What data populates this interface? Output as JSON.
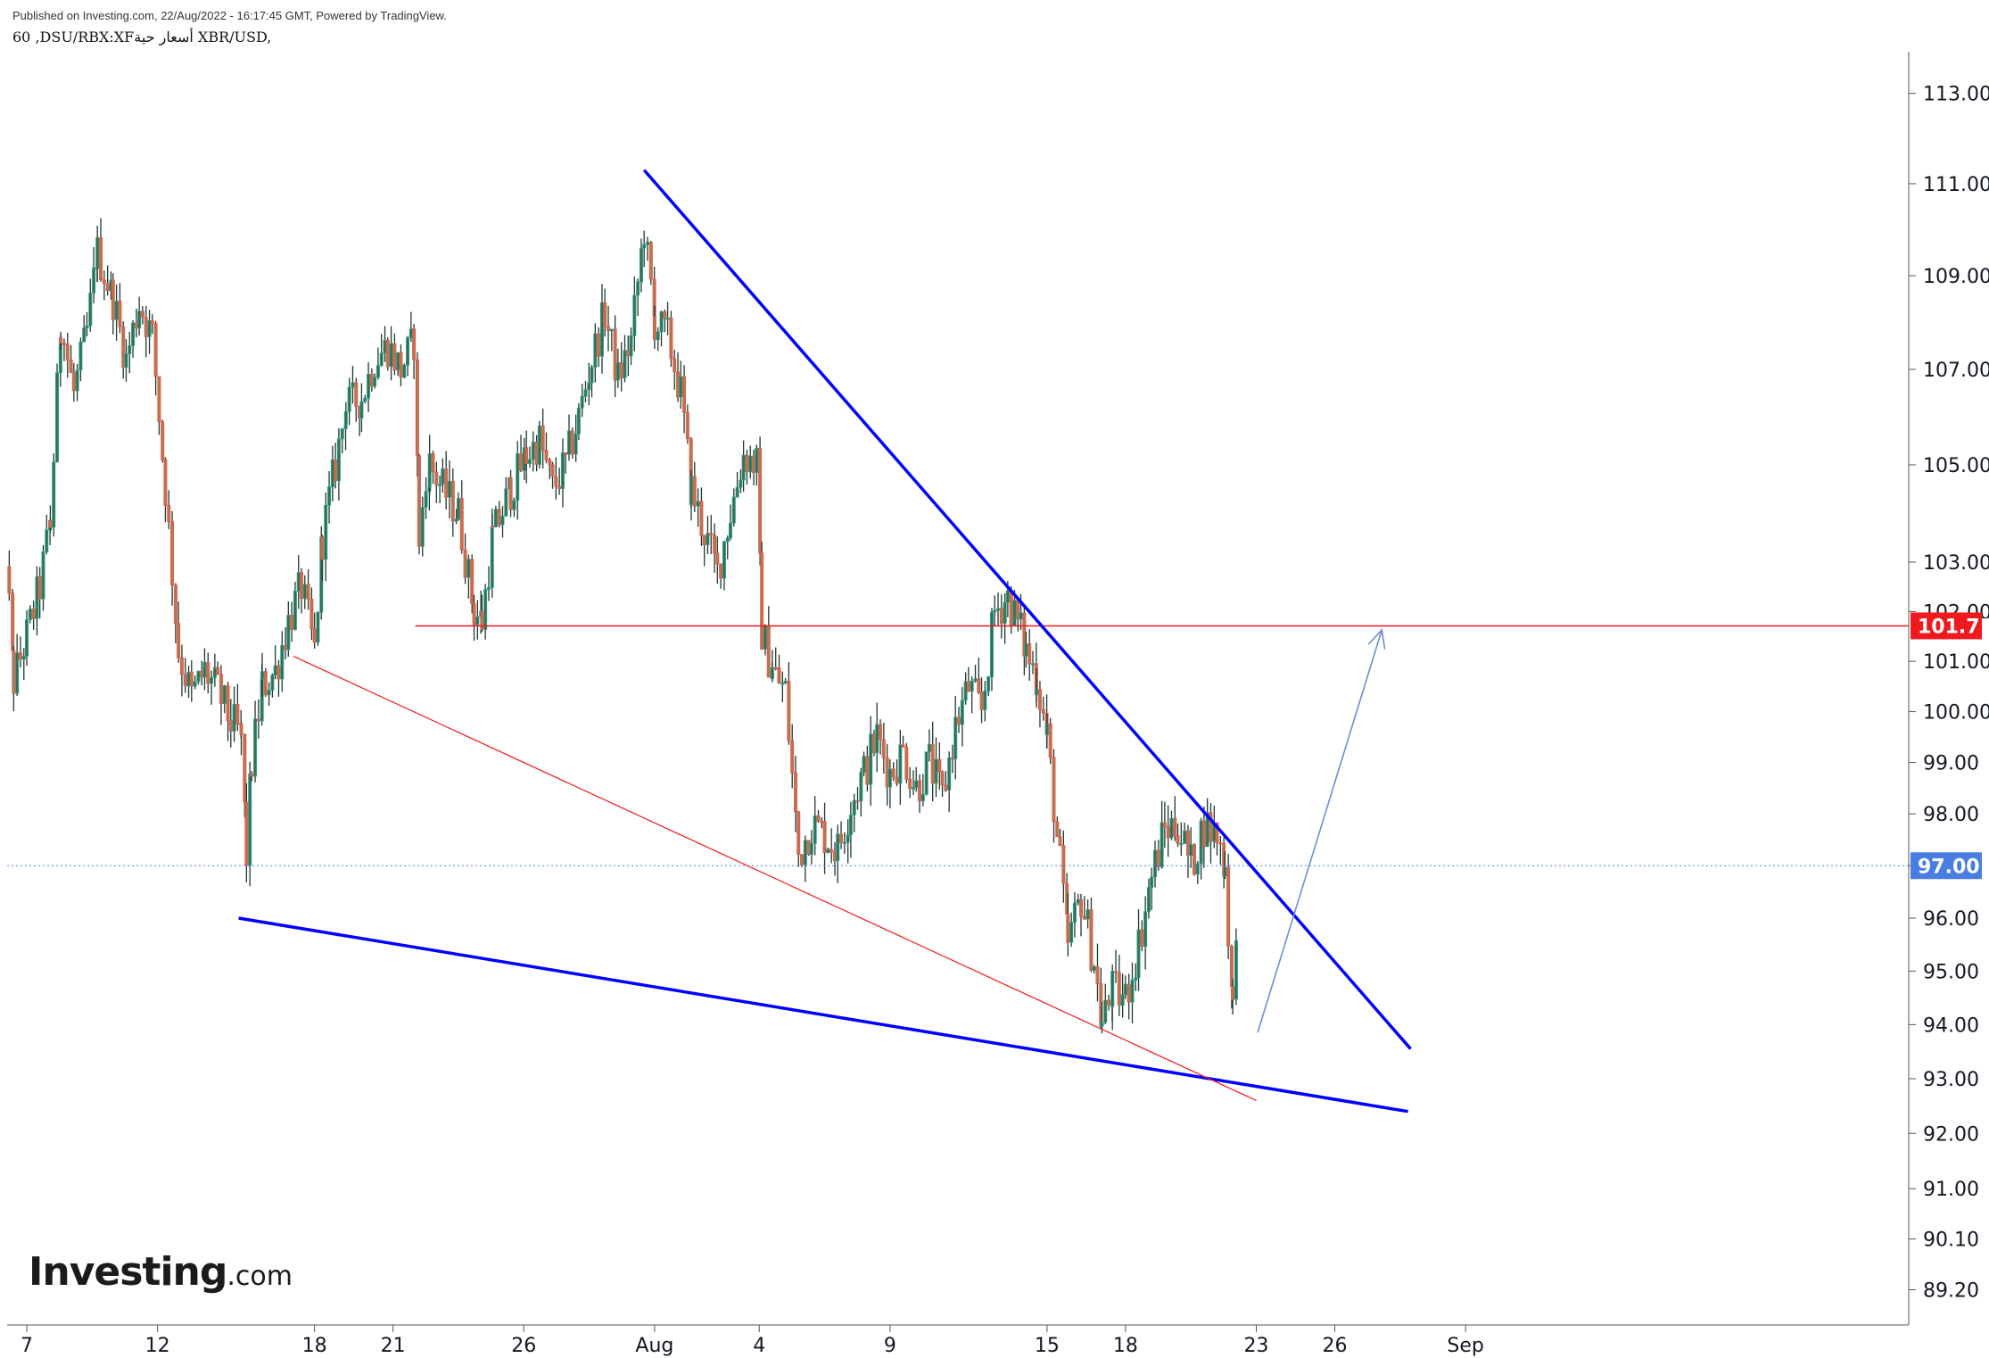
{
  "header": {
    "published": "Published on Investing.com, 22/Aug/2022 - 16:17:45 GMT, Powered by TradingView.",
    "symbol": "60 ,DSU/RBX:XFأسعار حية XBR/USD,"
  },
  "logo": {
    "main": "Investing",
    "domain": ".com"
  },
  "chart_data": {
    "type": "candlestick",
    "x_ticks": [
      {
        "label": "7",
        "day": 7
      },
      {
        "label": "12",
        "day": 12
      },
      {
        "label": "18",
        "day": 18
      },
      {
        "label": "21",
        "day": 21
      },
      {
        "label": "26",
        "day": 26
      },
      {
        "label": "Aug",
        "day": 31
      },
      {
        "label": "4",
        "day": 35
      },
      {
        "label": "9",
        "day": 40
      },
      {
        "label": "15",
        "day": 46
      },
      {
        "label": "18",
        "day": 49
      },
      {
        "label": "23",
        "day": 54
      },
      {
        "label": "26",
        "day": 57
      },
      {
        "label": "Sep",
        "day": 62
      }
    ],
    "y_ticks": [
      "113.00",
      "111.00",
      "109.00",
      "107.00",
      "105.00",
      "103.00",
      "102.00",
      "101.00",
      "100.00",
      "99.00",
      "98.00",
      "97.00",
      "96.00",
      "95.00",
      "94.00",
      "93.00",
      "92.00",
      "91.00",
      "90.10",
      "89.20"
    ],
    "y_scale": "log",
    "price_labels": [
      {
        "value": "101.71",
        "color": "#f0191e",
        "text_color": "#ffffff"
      },
      {
        "value": "97.00",
        "color": "#4a7de2",
        "text_color": "#ffffff"
      }
    ],
    "up_color": "#26a69a",
    "down_color": "#ef5350",
    "path": [
      [
        6.0,
        106.5
      ],
      [
        6.2,
        103.2
      ],
      [
        6.5,
        100.6
      ],
      [
        7.0,
        101.5
      ],
      [
        7.5,
        102.5
      ],
      [
        7.9,
        103.8
      ],
      [
        8.3,
        108.0
      ],
      [
        8.8,
        106.5
      ],
      [
        9.3,
        107.8
      ],
      [
        9.7,
        109.5
      ],
      [
        10.3,
        108.5
      ],
      [
        10.8,
        107.2
      ],
      [
        11.3,
        108.4
      ],
      [
        11.8,
        107.7
      ],
      [
        12.3,
        104.5
      ],
      [
        12.8,
        101.2
      ],
      [
        13.3,
        100.3
      ],
      [
        13.8,
        100.8
      ],
      [
        14.3,
        100.4
      ],
      [
        14.8,
        99.8
      ],
      [
        15.2,
        99.5
      ],
      [
        15.4,
        97.2
      ],
      [
        15.6,
        99.0
      ],
      [
        16.0,
        100.5
      ],
      [
        16.5,
        100.8
      ],
      [
        17.0,
        101.8
      ],
      [
        17.5,
        102.5
      ],
      [
        18.0,
        101.2
      ],
      [
        18.3,
        103.5
      ],
      [
        18.8,
        105.0
      ],
      [
        19.2,
        106.2
      ],
      [
        19.8,
        106.4
      ],
      [
        20.3,
        107.2
      ],
      [
        20.8,
        107.5
      ],
      [
        21.3,
        107.0
      ],
      [
        21.8,
        107.6
      ],
      [
        22.0,
        103.5
      ],
      [
        22.4,
        105.0
      ],
      [
        22.9,
        104.5
      ],
      [
        23.5,
        104.0
      ],
      [
        24.1,
        102.0
      ],
      [
        24.4,
        101.8
      ],
      [
        24.8,
        103.5
      ],
      [
        25.5,
        104.5
      ],
      [
        26.1,
        105.2
      ],
      [
        26.6,
        105.5
      ],
      [
        27.1,
        104.5
      ],
      [
        27.6,
        105.0
      ],
      [
        28.1,
        106.0
      ],
      [
        28.6,
        107.2
      ],
      [
        29.1,
        108.2
      ],
      [
        29.6,
        106.8
      ],
      [
        30.1,
        107.6
      ],
      [
        30.6,
        110.0
      ],
      [
        31.0,
        108.0
      ],
      [
        31.5,
        107.7
      ],
      [
        32.0,
        106.5
      ],
      [
        32.4,
        104.5
      ],
      [
        32.9,
        103.6
      ],
      [
        33.4,
        102.8
      ],
      [
        33.9,
        104.0
      ],
      [
        34.4,
        105.2
      ],
      [
        34.9,
        105.0
      ],
      [
        35.1,
        101.6
      ],
      [
        35.5,
        100.8
      ],
      [
        36.0,
        100.4
      ],
      [
        36.5,
        97.2
      ],
      [
        37.0,
        97.8
      ],
      [
        37.5,
        97.6
      ],
      [
        38.0,
        97.3
      ],
      [
        38.5,
        98.2
      ],
      [
        39.0,
        98.8
      ],
      [
        39.5,
        99.5
      ],
      [
        40.0,
        98.8
      ],
      [
        40.5,
        99.2
      ],
      [
        41.0,
        98.5
      ],
      [
        41.5,
        99.0
      ],
      [
        42.0,
        98.3
      ],
      [
        42.5,
        99.7
      ],
      [
        43.0,
        100.5
      ],
      [
        43.5,
        100.0
      ],
      [
        44.0,
        102.0
      ],
      [
        44.5,
        102.3
      ],
      [
        45.0,
        101.6
      ],
      [
        45.2,
        101.2
      ],
      [
        45.6,
        100.7
      ],
      [
        46.0,
        99.5
      ],
      [
        46.5,
        97.0
      ],
      [
        46.8,
        95.5
      ],
      [
        47.3,
        96.4
      ],
      [
        47.8,
        95.2
      ],
      [
        48.1,
        94.0
      ],
      [
        48.5,
        94.6
      ],
      [
        49.0,
        94.5
      ],
      [
        49.5,
        95.5
      ],
      [
        50.0,
        96.8
      ],
      [
        50.5,
        97.7
      ],
      [
        51.0,
        97.8
      ],
      [
        51.5,
        97.0
      ],
      [
        52.0,
        97.8
      ],
      [
        52.5,
        97.6
      ],
      [
        52.8,
        97.0
      ],
      [
        53.1,
        94.2
      ],
      [
        53.3,
        97.0
      ]
    ]
  }
}
